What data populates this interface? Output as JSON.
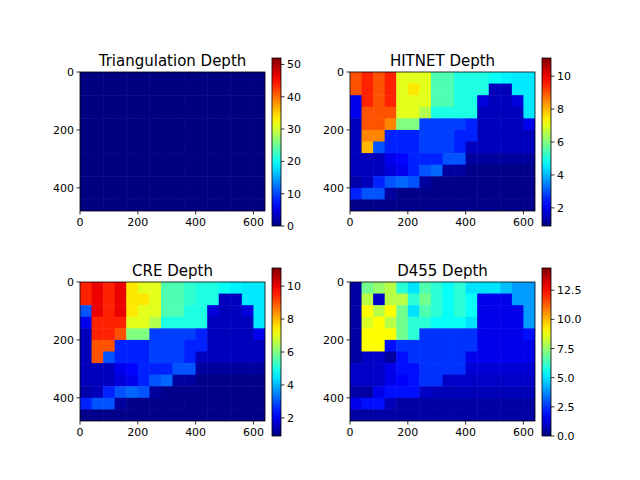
{
  "chart_data": [
    {
      "type": "heatmap",
      "title": "Triangulation Depth",
      "xlim": [
        0,
        640
      ],
      "ylim": [
        480,
        0
      ],
      "xticks": [
        0,
        200,
        400,
        600
      ],
      "yticks": [
        0,
        200,
        400
      ],
      "colorbar": {
        "range": [
          0,
          52
        ],
        "ticks": [
          0,
          10,
          20,
          30,
          40,
          50
        ]
      },
      "cells": [
        [
          0,
          0,
          0,
          0,
          0,
          0,
          0,
          0,
          0,
          0,
          0,
          0,
          0,
          0,
          0,
          0
        ],
        [
          0,
          0,
          0,
          0,
          0,
          0,
          0,
          0,
          0,
          0,
          0,
          0,
          0,
          0,
          0,
          0
        ],
        [
          0,
          0,
          0,
          0,
          0,
          0,
          0,
          0,
          0,
          0,
          0,
          0,
          0,
          0,
          0,
          0
        ],
        [
          0,
          0,
          0,
          0,
          0,
          0,
          0,
          0,
          0,
          0,
          0,
          0,
          0,
          0,
          0,
          0
        ],
        [
          0,
          0,
          0,
          0,
          0,
          0,
          0,
          0,
          0,
          0,
          0,
          0,
          0,
          0,
          0,
          0
        ],
        [
          0,
          0,
          0,
          0,
          0,
          0,
          0,
          0,
          0,
          0,
          0,
          0,
          0,
          0,
          0,
          0
        ],
        [
          0,
          0,
          0,
          0,
          0,
          0,
          0,
          0,
          0,
          0,
          0,
          0,
          0,
          0,
          0,
          0
        ],
        [
          0,
          0,
          0,
          0,
          0,
          0,
          0,
          0,
          0,
          0,
          0,
          0,
          0,
          0,
          0,
          0
        ],
        [
          0,
          0,
          0,
          0,
          0,
          0,
          0,
          0,
          0,
          0,
          0,
          0,
          0,
          0,
          0,
          0
        ],
        [
          0,
          0,
          0,
          0,
          0,
          0,
          0,
          0,
          0,
          0,
          0,
          0,
          0,
          0,
          0,
          0
        ],
        [
          0,
          0,
          0,
          0,
          0,
          0,
          0,
          0,
          0,
          0,
          0,
          0,
          0,
          0,
          0,
          0
        ],
        [
          0,
          0,
          0,
          0,
          0,
          0,
          0,
          0,
          0,
          0,
          0,
          0,
          0,
          0,
          0,
          0
        ]
      ]
    },
    {
      "type": "heatmap",
      "title": "HITNET Depth",
      "xlim": [
        0,
        640
      ],
      "ylim": [
        480,
        0
      ],
      "xticks": [
        0,
        200,
        400,
        600
      ],
      "yticks": [
        0,
        200,
        400
      ],
      "colorbar": {
        "range": [
          0.9,
          11.1
        ],
        "ticks": [
          2,
          4,
          6,
          8,
          10
        ]
      },
      "cells": [
        [
          9,
          9.5,
          9,
          9.5,
          7,
          7,
          7,
          5.5,
          5.5,
          5,
          5,
          5,
          4.8,
          4.6,
          4.5,
          4.5
        ],
        [
          9,
          9.5,
          9,
          9.5,
          7,
          7.5,
          7,
          5.5,
          5.5,
          5,
          5,
          5,
          1.5,
          1.5,
          4.5,
          4.5
        ],
        [
          2,
          9.5,
          9,
          9.5,
          7,
          7,
          7,
          5.5,
          5.5,
          5,
          5,
          1.8,
          1.5,
          1.5,
          1.8,
          4.5
        ],
        [
          2,
          9,
          9,
          9,
          7,
          7,
          6.5,
          5,
          5,
          5,
          5,
          1.5,
          1.5,
          1.5,
          1.5,
          4.5
        ],
        [
          1.5,
          9,
          9,
          8.5,
          6,
          6,
          2.8,
          2.8,
          2.8,
          2.8,
          2.5,
          1.5,
          1.5,
          1.5,
          1.5,
          2
        ],
        [
          1.5,
          8.5,
          8.5,
          2.5,
          2.5,
          2.5,
          2.8,
          2.8,
          2.8,
          2.5,
          2.5,
          1.5,
          1.5,
          1.5,
          1.5,
          1.5
        ],
        [
          1.5,
          8,
          3,
          2.5,
          2.5,
          2.5,
          2.8,
          2.8,
          2.8,
          2.5,
          1.5,
          1.5,
          1.5,
          1.5,
          1.5,
          1.5
        ],
        [
          1.5,
          1.5,
          1.5,
          2,
          2.2,
          2.5,
          2.5,
          2.5,
          3,
          3,
          1.2,
          1.2,
          1.2,
          1.2,
          1.2,
          1.2
        ],
        [
          1.5,
          1.5,
          1.5,
          1.8,
          2,
          2.5,
          3,
          3.2,
          1.2,
          1.2,
          1,
          1,
          1,
          1,
          1,
          1
        ],
        [
          1.3,
          1.5,
          2.5,
          3,
          3.2,
          3,
          1.2,
          1,
          1,
          1,
          1,
          1,
          1,
          1,
          1,
          1
        ],
        [
          2.5,
          3,
          3,
          1.2,
          1,
          1,
          1,
          1,
          1,
          1,
          1,
          1,
          1,
          1,
          1,
          1
        ],
        [
          1,
          1,
          1,
          1,
          1,
          1,
          1,
          1,
          1,
          1,
          1,
          1,
          1,
          1,
          1,
          1
        ]
      ]
    },
    {
      "type": "heatmap",
      "title": "CRE Depth",
      "xlim": [
        0,
        640
      ],
      "ylim": [
        480,
        0
      ],
      "xticks": [
        0,
        200,
        400,
        600
      ],
      "yticks": [
        0,
        200,
        400
      ],
      "colorbar": {
        "range": [
          0.9,
          11.1
        ],
        "ticks": [
          2,
          4,
          6,
          8,
          10
        ]
      },
      "cells": [
        [
          9.5,
          10,
          9.5,
          10,
          7.5,
          7,
          7,
          5.5,
          5.5,
          5.2,
          5,
          5,
          4.8,
          4.6,
          4.5,
          4.5
        ],
        [
          9.5,
          10,
          9.5,
          10,
          7.5,
          7.5,
          7,
          5.5,
          5.5,
          5.2,
          5,
          5,
          1.5,
          1.5,
          4.5,
          4.5
        ],
        [
          3,
          10,
          9.5,
          10,
          7.5,
          7,
          7,
          5.5,
          5.5,
          5,
          5,
          1.8,
          1.5,
          1.5,
          1.8,
          4.5
        ],
        [
          2,
          9.5,
          9.5,
          9.5,
          7,
          7,
          6.5,
          5,
          5,
          5,
          5,
          1.5,
          1.5,
          1.5,
          1.5,
          4.5
        ],
        [
          1.5,
          9.5,
          9.5,
          9,
          6,
          6,
          2.8,
          2.8,
          2.8,
          2.8,
          2.5,
          1.5,
          1.5,
          1.5,
          1.5,
          2
        ],
        [
          1.5,
          9,
          9,
          2.5,
          2.5,
          2.5,
          2.8,
          2.8,
          2.8,
          2.5,
          2.5,
          1.5,
          1.5,
          1.5,
          1.5,
          1.5
        ],
        [
          1.5,
          9,
          3,
          2.5,
          2.5,
          2.5,
          2.8,
          2.8,
          2.8,
          2.5,
          1.5,
          1.5,
          1.5,
          1.5,
          1.5,
          1.5
        ],
        [
          1.5,
          1.5,
          1.5,
          2,
          2.2,
          2.5,
          2.5,
          2.5,
          3,
          3,
          1.2,
          1.2,
          1.2,
          1.2,
          1.2,
          1.2
        ],
        [
          1.5,
          1.5,
          1.5,
          1.8,
          2,
          2.5,
          3,
          3.2,
          1.2,
          1.2,
          1,
          1,
          1,
          1,
          1,
          1
        ],
        [
          1.3,
          1.5,
          2.5,
          3,
          3.2,
          3,
          1.2,
          1,
          1,
          1,
          1,
          1,
          1,
          1,
          1,
          1
        ],
        [
          2.5,
          3,
          3,
          1.2,
          1,
          1,
          1,
          1,
          1,
          1,
          1,
          1,
          1,
          1,
          1,
          1
        ],
        [
          1,
          1,
          1,
          1,
          1,
          1,
          1,
          1,
          1,
          1,
          1,
          1,
          1,
          1,
          1,
          1
        ]
      ]
    },
    {
      "type": "heatmap",
      "title": "D455 Depth",
      "xlim": [
        0,
        640
      ],
      "ylim": [
        480,
        0
      ],
      "xticks": [
        0,
        200,
        400,
        600
      ],
      "yticks": [
        0,
        200,
        400
      ],
      "colorbar": {
        "range": [
          0,
          14.4
        ],
        "ticks": [
          {
            "value": 0,
            "label": "0.0"
          },
          2.5,
          {
            "value": 5,
            "label": "5.0"
          },
          7.5,
          {
            "value": 10,
            "label": "10.0"
          },
          12.5
        ]
      },
      "cells": [
        [
          0.5,
          7,
          7.5,
          8,
          6,
          5,
          6.5,
          6,
          5.5,
          6,
          5,
          5,
          5,
          4.5,
          4,
          4
        ],
        [
          0.5,
          8,
          1,
          8,
          8,
          6,
          7,
          6,
          5.5,
          6,
          5.5,
          1.5,
          1.5,
          1.5,
          4,
          4
        ],
        [
          0.5,
          9,
          8,
          9,
          7,
          5,
          6.5,
          6,
          5.5,
          6,
          5.5,
          1.5,
          1.5,
          1.5,
          1.5,
          4
        ],
        [
          0.5,
          8.5,
          9,
          8,
          7,
          6,
          6,
          5.5,
          5.5,
          5.5,
          5,
          1.5,
          1.5,
          1.5,
          1.5,
          4
        ],
        [
          0.5,
          9,
          9,
          9,
          7,
          6,
          2.5,
          2.5,
          2.5,
          2.5,
          2.5,
          1.5,
          1.5,
          1.5,
          1.5,
          2
        ],
        [
          0.5,
          9,
          9,
          2,
          2.5,
          2.5,
          2.5,
          2.5,
          2.5,
          2.5,
          2.5,
          1.5,
          1.5,
          1.5,
          1.5,
          1.5
        ],
        [
          0.5,
          1,
          1,
          0.5,
          2,
          2.5,
          2.5,
          2.5,
          2.5,
          2.5,
          1.5,
          1.5,
          1.5,
          1.5,
          1.5,
          1.5
        ],
        [
          1,
          1,
          1,
          1.5,
          2,
          2,
          2.5,
          2.5,
          2.5,
          2.5,
          1.2,
          1.2,
          1.2,
          1.2,
          1.2,
          1.2
        ],
        [
          1,
          1,
          1,
          1.5,
          1.8,
          2,
          2.5,
          2.5,
          1,
          1,
          1,
          1,
          1,
          1,
          1,
          1
        ],
        [
          0.5,
          0.5,
          1.5,
          2,
          2,
          2,
          1,
          0.8,
          0.8,
          0.8,
          0.8,
          0.8,
          0.8,
          0.8,
          0.8,
          0.8
        ],
        [
          1.5,
          2,
          2,
          0.8,
          0.5,
          0.5,
          0.5,
          0.5,
          0.5,
          0.5,
          0.5,
          0.5,
          0.5,
          0.5,
          0.5,
          0.5
        ],
        [
          0.5,
          0.5,
          0.5,
          0.5,
          0.5,
          0.5,
          0.5,
          0.5,
          0.5,
          0.5,
          0.5,
          0.5,
          0.5,
          0.5,
          0.5,
          0.5
        ]
      ]
    }
  ]
}
